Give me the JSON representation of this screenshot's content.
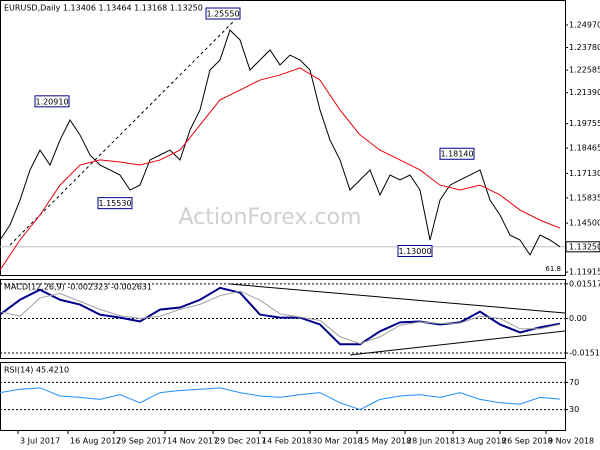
{
  "chart_data": [
    {
      "type": "line",
      "title": "EURUSD,Daily 1.13406 1.13464 1.13168 1.13250",
      "watermark": "ActionForex.com",
      "fib_label": "61.8",
      "xlim": [
        0,
        56.5
      ],
      "ylim": [
        1.1176,
        1.2629
      ],
      "grid": false,
      "yticks": [
        {
          "value": 1.2497,
          "label": "1.24970"
        },
        {
          "value": 1.2378,
          "label": "1.23780"
        },
        {
          "value": 1.22585,
          "label": "1.22585"
        },
        {
          "value": 1.2139,
          "label": "1.21390"
        },
        {
          "value": 1.19755,
          "label": "1.19755"
        },
        {
          "value": 1.18465,
          "label": "1.18465"
        },
        {
          "value": 1.1713,
          "label": "1.17130"
        },
        {
          "value": 1.15835,
          "label": "1.15835"
        },
        {
          "value": 1.145,
          "label": "1.14500"
        },
        {
          "value": 1.11915,
          "label": "1.11915"
        }
      ],
      "xticks": [
        {
          "value": 1.8,
          "label": "3 Jul 2017"
        },
        {
          "value": 6.8,
          "label": "16 Aug 2017"
        },
        {
          "value": 11.4,
          "label": "29 Sep 2017"
        },
        {
          "value": 16.5,
          "label": "14 Nov 2017"
        },
        {
          "value": 21.3,
          "label": "29 Dec 2017"
        },
        {
          "value": 26,
          "label": "14 Feb 2018"
        },
        {
          "value": 31,
          "label": "30 Mar 2018"
        },
        {
          "value": 35.7,
          "label": "15 May 2018"
        },
        {
          "value": 40.5,
          "label": "28 Jun 2018"
        },
        {
          "value": 45.3,
          "label": "13 Aug 2018"
        },
        {
          "value": 50,
          "label": "26 Sep 2018"
        },
        {
          "value": 54.6,
          "label": "9 Nov 2018"
        }
      ],
      "last_price": {
        "value": 1.1325,
        "label": "1.13250"
      },
      "annotations": [
        {
          "text": "1.20910",
          "x": 5.2,
          "y": 1.2091
        },
        {
          "text": "1.25550",
          "x": 22.3,
          "y": 1.2555
        },
        {
          "text": "1.15530",
          "x": 11.5,
          "y": 1.1553
        },
        {
          "text": "1.13000",
          "x": 41.5,
          "y": 1.13
        },
        {
          "text": "1.18140",
          "x": 45.7,
          "y": 1.1814
        }
      ],
      "series": [
        {
          "color": "#000000",
          "line_width": 1,
          "x": [
            0,
            1,
            2,
            3,
            4,
            5,
            6,
            7,
            8,
            9,
            10,
            11,
            12,
            13,
            14,
            15,
            16,
            17,
            18,
            19,
            20,
            21,
            22,
            23,
            24,
            25,
            26,
            27,
            28,
            29,
            30,
            31,
            32,
            33,
            34,
            35,
            36,
            37,
            38,
            39,
            40,
            41,
            42,
            43,
            44,
            45,
            46,
            47,
            48,
            49,
            50,
            51,
            52,
            53,
            54,
            55,
            56
          ],
          "values": [
            1.1361,
            1.144,
            1.1572,
            1.1731,
            1.1836,
            1.1757,
            1.1889,
            1.1995,
            1.1916,
            1.181,
            1.1757,
            1.1731,
            1.1704,
            1.1625,
            1.1651,
            1.1784,
            1.181,
            1.1836,
            1.1784,
            1.1942,
            1.2048,
            1.2259,
            1.2312,
            1.247,
            1.2418,
            1.2259,
            1.2312,
            1.2365,
            1.2286,
            1.2338,
            1.2312,
            1.2259,
            1.2048,
            1.1889,
            1.1784,
            1.1625,
            1.1678,
            1.1731,
            1.1599,
            1.1704,
            1.1678,
            1.1704,
            1.1625,
            1.1361,
            1.1572,
            1.1651,
            1.1678,
            1.1704,
            1.1731,
            1.1572,
            1.1493,
            1.1387,
            1.1361,
            1.1282,
            1.1387,
            1.1361,
            1.1325
          ]
        },
        {
          "color": "#e8000b",
          "line_width": 1,
          "x": [
            0,
            2,
            4,
            6,
            8,
            10,
            12,
            14,
            16,
            18,
            20,
            22,
            24,
            26,
            28,
            30,
            32,
            34,
            36,
            38,
            40,
            42,
            44,
            46,
            48,
            50,
            52,
            54,
            56
          ],
          "values": [
            1.1202,
            1.1361,
            1.1493,
            1.1651,
            1.1757,
            1.1784,
            1.1773,
            1.1757,
            1.1784,
            1.1836,
            1.1969,
            1.2101,
            1.2153,
            1.2206,
            1.2233,
            1.227,
            1.2206,
            1.2048,
            1.1916,
            1.1836,
            1.1784,
            1.1731,
            1.1651,
            1.1625,
            1.1651,
            1.1599,
            1.1519,
            1.1466,
            1.1424
          ]
        }
      ]
    },
    {
      "type": "line",
      "title": "MACD(12,26,9) -0.002323 -0.002631",
      "xlim": [
        0,
        56.5
      ],
      "ylim": [
        -0.0173,
        0.0173
      ],
      "grid": true,
      "yticks": [
        0.015177,
        {
          "value": 0,
          "label": "0.00"
        },
        -0.015126
      ],
      "series": [
        {
          "color": "#00008b",
          "line_width": 2,
          "x": [
            0,
            2,
            4,
            6,
            8,
            10,
            12,
            14,
            16,
            18,
            20,
            22,
            24,
            26,
            28,
            30,
            32,
            34,
            36,
            38,
            40,
            42,
            44,
            46,
            48,
            50,
            52,
            54,
            56
          ],
          "values": [
            0.0017,
            0.0082,
            0.0126,
            0.0082,
            0.0061,
            0.0017,
            0.0004,
            -0.0013,
            0.0039,
            0.0048,
            0.0082,
            0.0134,
            0.0113,
            0.0017,
            0.0004,
            0.0004,
            -0.0026,
            -0.0113,
            -0.0113,
            -0.0056,
            -0.0017,
            -0.0013,
            -0.0026,
            -0.0017,
            0.003,
            -0.0026,
            -0.0061,
            -0.0039,
            -0.0023
          ]
        },
        {
          "color": "#a0a0a0",
          "line_width": 1,
          "x": [
            0,
            2,
            4,
            6,
            8,
            10,
            12,
            14,
            16,
            18,
            20,
            22,
            24,
            26,
            28,
            30,
            32,
            34,
            36,
            38,
            40,
            42,
            44,
            46,
            48,
            50,
            52,
            54,
            56
          ],
          "values": [
            0.003,
            0.001,
            0.009,
            0.011,
            0.0075,
            0.004,
            0.0012,
            0,
            0.001,
            0.004,
            0.0062,
            0.01,
            0.012,
            0.008,
            0.002,
            0.0006,
            -0.0008,
            -0.008,
            -0.011,
            -0.008,
            -0.003,
            -0.0015,
            -0.0022,
            -0.002,
            0.001,
            0,
            -0.0045,
            -0.0045,
            -0.0026
          ]
        }
      ]
    },
    {
      "type": "line",
      "title": "RSI(14) 45.4210",
      "xlim": [
        0,
        56.5
      ],
      "ylim": [
        0,
        100
      ],
      "grid": true,
      "yticks": [
        70,
        30
      ],
      "series": [
        {
          "color": "#1e90ff",
          "line_width": 1,
          "x": [
            0,
            2,
            4,
            6,
            8,
            10,
            12,
            14,
            16,
            18,
            20,
            22,
            24,
            26,
            28,
            30,
            32,
            34,
            36,
            38,
            40,
            42,
            44,
            46,
            48,
            50,
            52,
            54,
            56
          ],
          "values": [
            55,
            60,
            62,
            50,
            48,
            45,
            52,
            40,
            55,
            58,
            60,
            62,
            55,
            50,
            48,
            52,
            55,
            40,
            30,
            45,
            50,
            52,
            48,
            55,
            45,
            40,
            38,
            48,
            45.421
          ]
        }
      ]
    }
  ]
}
